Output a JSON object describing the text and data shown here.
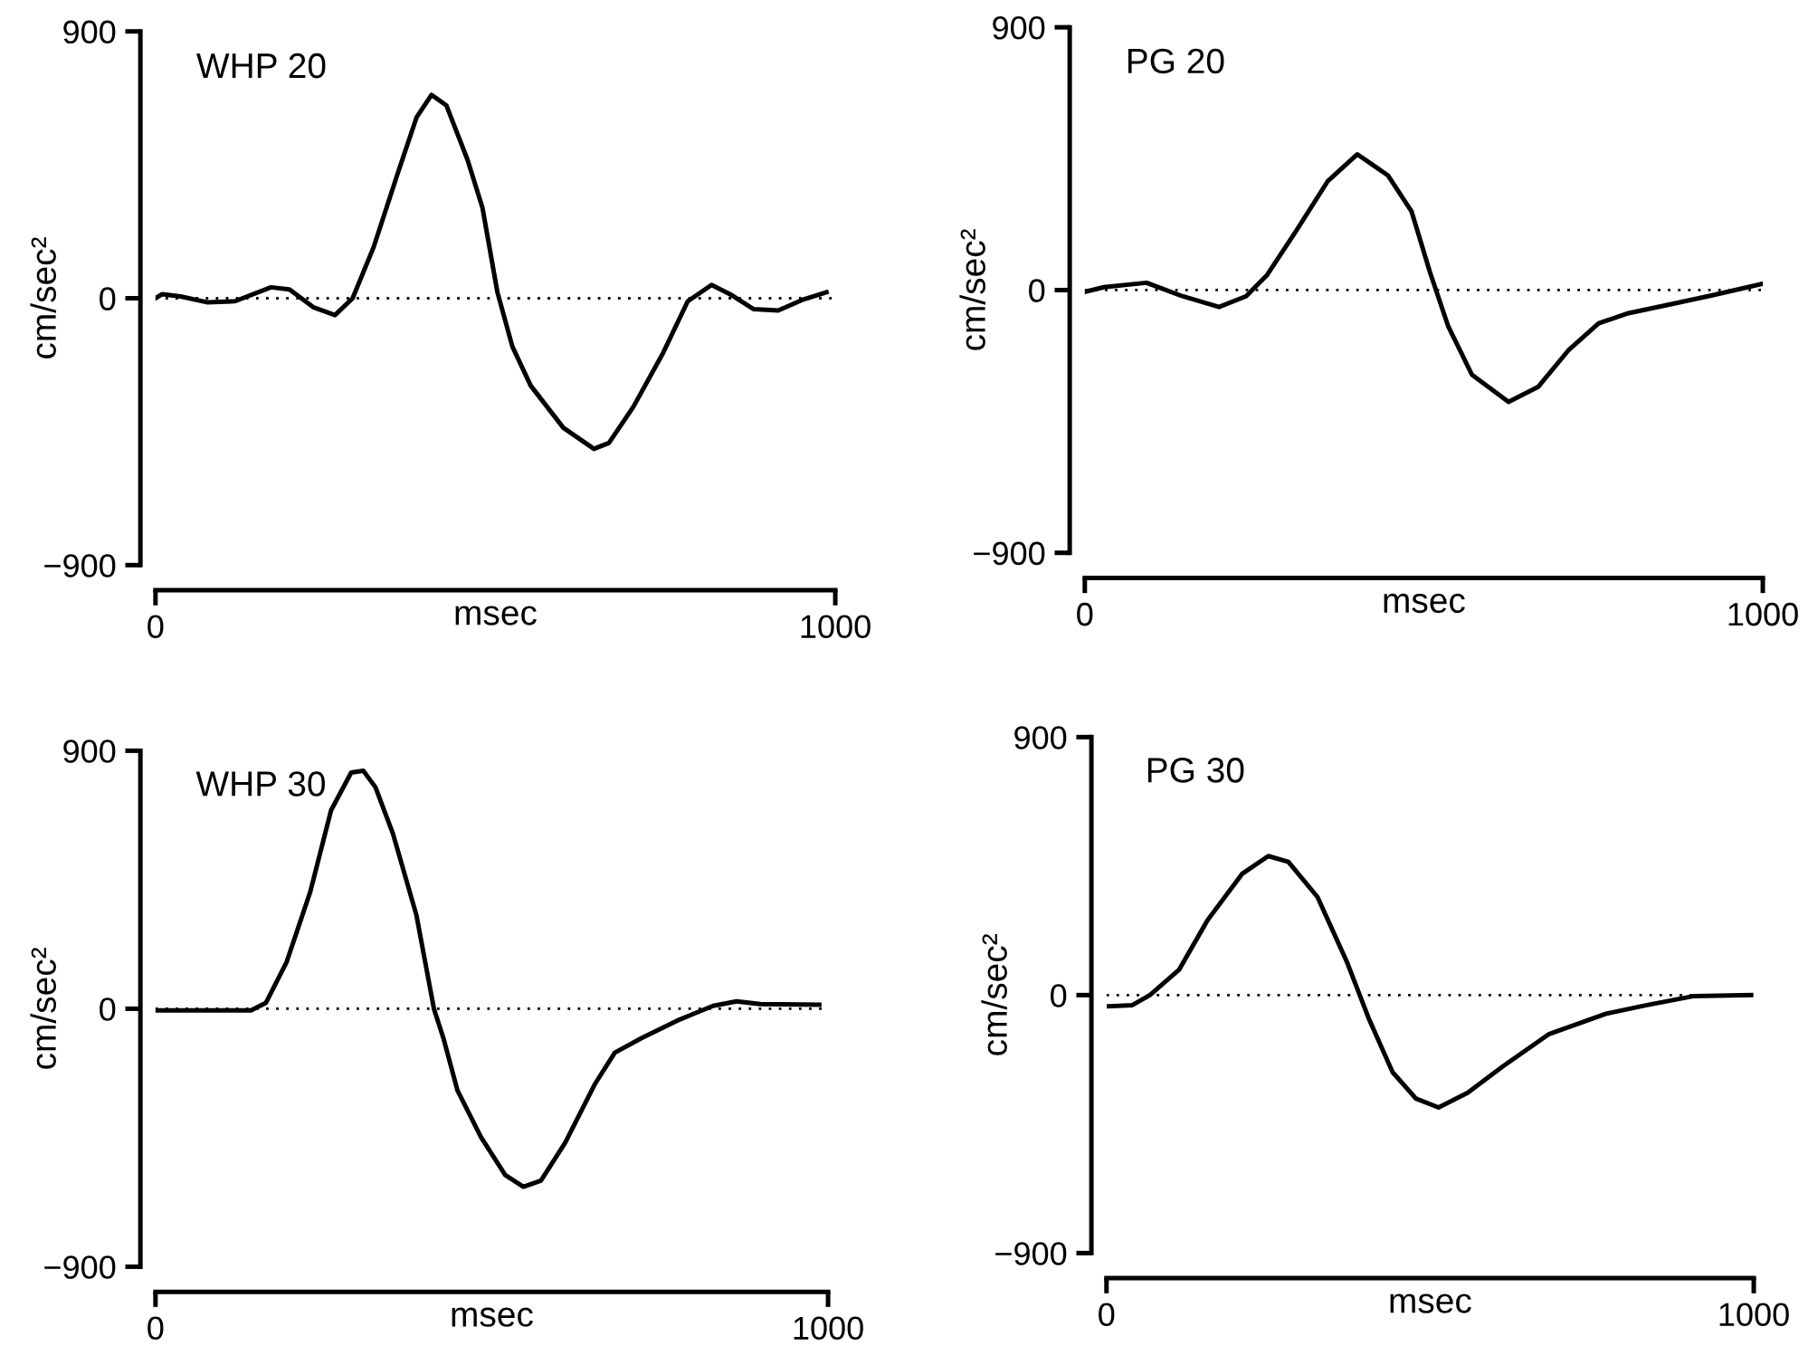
{
  "chart_data": [
    {
      "type": "line",
      "title": "WHP 20",
      "xlabel": "msec",
      "ylabel": "cm/sec²",
      "xlim": [
        0,
        1000
      ],
      "ylim": [
        -900,
        900
      ],
      "xticks": [
        0,
        1000
      ],
      "yticks": [
        -900,
        0,
        900
      ],
      "grid": false,
      "marker": "none",
      "line_style": "solid",
      "ref_lines": [
        {
          "axis": "y",
          "value": 0,
          "line_style": "dotted",
          "color": "#000000"
        }
      ],
      "series": [
        {
          "color": "#000000",
          "x": [
            0,
            10,
            37,
            77,
            117,
            170,
            197,
            232,
            264,
            290,
            321,
            357,
            384,
            406,
            428,
            459,
            481,
            503,
            525,
            552,
            600,
            645,
            667,
            703,
            747,
            783,
            818,
            845,
            880,
            916,
            951,
            987
          ],
          "values": [
            0,
            14,
            6,
            -14,
            -10,
            37,
            30,
            -30,
            -57,
            0,
            173,
            426,
            610,
            686,
            650,
            467,
            305,
            20,
            -163,
            -295,
            -437,
            -508,
            -488,
            -366,
            -183,
            -10,
            45,
            14,
            -37,
            -41,
            -6,
            20
          ]
        }
      ]
    },
    {
      "type": "line",
      "title": "PG 20",
      "xlabel": "msec",
      "ylabel": "cm/sec²",
      "xlim": [
        0,
        1000
      ],
      "ylim": [
        -900,
        900
      ],
      "xticks": [
        0,
        1000
      ],
      "yticks": [
        -900,
        0,
        900
      ],
      "grid": false,
      "marker": "none",
      "line_style": "solid",
      "ref_lines": [
        {
          "axis": "y",
          "value": 0,
          "line_style": "dotted",
          "color": "#000000"
        }
      ],
      "series": [
        {
          "color": "#000000",
          "x": [
            0,
            28,
            91,
            144,
            198,
            238,
            269,
            313,
            358,
            402,
            447,
            482,
            509,
            536,
            571,
            625,
            669,
            713,
            758,
            802,
            865,
            927,
            998
          ],
          "values": [
            -6,
            10,
            25,
            -21,
            -58,
            -21,
            52,
            207,
            372,
            465,
            393,
            269,
            62,
            -124,
            -290,
            -383,
            -331,
            -207,
            -114,
            -79,
            -48,
            -17,
            21
          ]
        }
      ]
    },
    {
      "type": "line",
      "title": "WHP 30",
      "xlabel": "msec",
      "ylabel": "cm/sec²",
      "xlim": [
        0,
        1000
      ],
      "ylim": [
        -900,
        900
      ],
      "xticks": [
        0,
        1000
      ],
      "yticks": [
        -900,
        0,
        900
      ],
      "grid": false,
      "marker": "none",
      "line_style": "solid",
      "ref_lines": [
        {
          "axis": "y",
          "value": 0,
          "line_style": "dotted",
          "color": "#000000"
        }
      ],
      "series": [
        {
          "color": "#000000",
          "x": [
            0,
            142,
            164,
            195,
            230,
            261,
            291,
            309,
            327,
            353,
            388,
            414,
            428,
            449,
            484,
            520,
            547,
            573,
            609,
            653,
            683,
            723,
            776,
            829,
            864,
            899,
            987
          ],
          "values": [
            -6,
            -6,
            20,
            163,
            407,
            692,
            824,
            830,
            773,
            611,
            326,
            0,
            -102,
            -285,
            -448,
            -580,
            -621,
            -600,
            -468,
            -264,
            -153,
            -102,
            -41,
            10,
            26,
            16,
            14
          ]
        }
      ]
    },
    {
      "type": "line",
      "title": "PG 30",
      "xlabel": "msec",
      "ylabel": "cm/sec²",
      "xlim": [
        0,
        1000
      ],
      "ylim": [
        -900,
        900
      ],
      "xticks": [
        0,
        1000
      ],
      "yticks": [
        -900,
        0,
        900
      ],
      "grid": false,
      "marker": "none",
      "line_style": "solid",
      "ref_lines": [
        {
          "axis": "y",
          "value": 0,
          "line_style": "dotted",
          "color": "#000000"
        }
      ],
      "series": [
        {
          "color": "#000000",
          "x": [
            4,
            40,
            67,
            112,
            156,
            210,
            250,
            281,
            326,
            371,
            406,
            442,
            478,
            513,
            558,
            612,
            683,
            772,
            835,
            906,
            996
          ],
          "values": [
            -39,
            -35,
            0,
            88,
            261,
            424,
            485,
            465,
            342,
            118,
            -86,
            -269,
            -361,
            -392,
            -341,
            -249,
            -137,
            -65,
            -35,
            -4,
            0
          ]
        }
      ]
    }
  ]
}
